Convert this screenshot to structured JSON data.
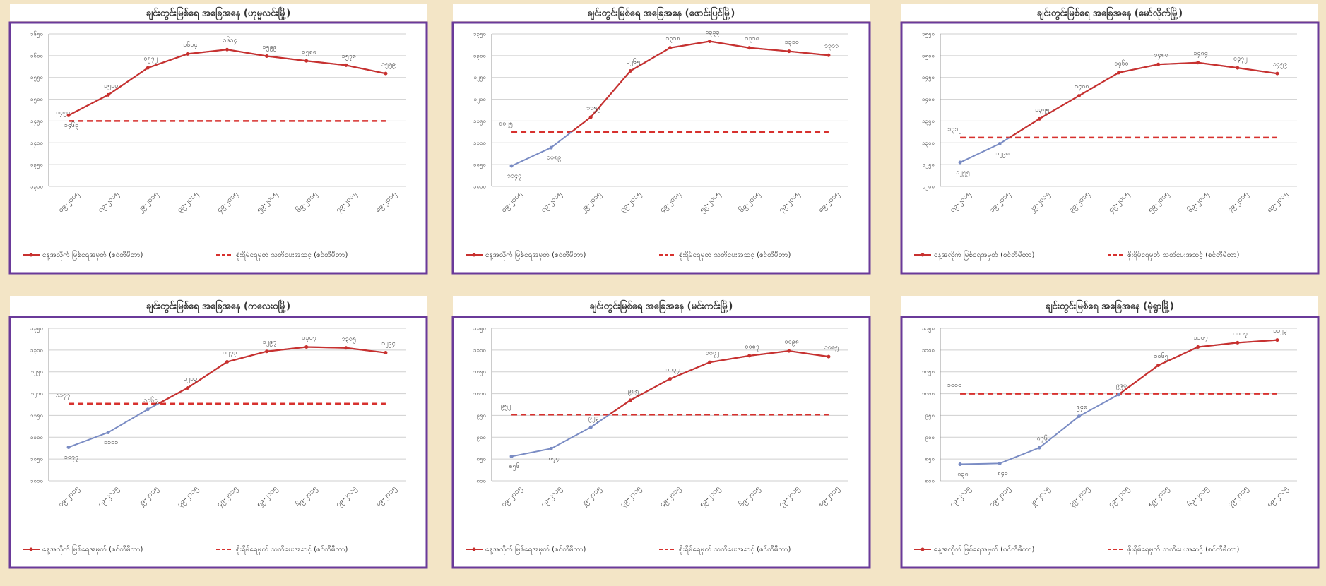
{
  "chart_data": [
    {
      "type": "line",
      "title": "ချင်းတွင်းမြစ်ရေ အခြေအနေ (ဟုမ္မလင်းမြို့)",
      "categories": [
        "၀၉-၂၀၁၅",
        "၁၉-၂၀၁၅",
        "၂၉-၂၀၁၅",
        "၃၉-၂၀၁၅",
        "၄၉-၂၀၁၅",
        "၅၉-၂၀၁၅",
        "၆၉-၂၀၁၅",
        "၇၉-၂၀၁၅",
        "၈၉-၂၀၁၅"
      ],
      "ylim": [
        1300,
        1650
      ],
      "yticks": [
        {
          "value": 1300,
          "label": "၁၃၀၀"
        },
        {
          "value": 1350,
          "label": "၁၃၅၀"
        },
        {
          "value": 1400,
          "label": "၁၄၀၀"
        },
        {
          "value": 1450,
          "label": "၁၄၅၀"
        },
        {
          "value": 1500,
          "label": "၁၅၀၀"
        },
        {
          "value": 1550,
          "label": "၁၅၅၀"
        },
        {
          "value": 1600,
          "label": "၁၆၀၀"
        },
        {
          "value": 1650,
          "label": "၁၆၅၀"
        }
      ],
      "series": [
        {
          "name": "နေ့အလိုက် မြစ်ရေအမှတ် (စင်တီမီတာ)",
          "color": "#c8312f",
          "color_below_danger": "#7a8cc4",
          "values": [
            1463,
            1510,
            1572,
            1604,
            1614,
            1599,
            1588,
            1578,
            1559
          ],
          "value_labels": [
            "၁၄၆၃",
            "၁၅၁၀",
            "၁၅၇၂",
            "၁၆၀၄",
            "၁၆၁၄",
            "၁၅၉၉",
            "၁၅၈၈",
            "၁၅၇၈",
            "၁၅၅၉"
          ]
        }
      ],
      "danger": {
        "name": "စိုးရိမ်ရေမှတ် သတိပေးအဆင့် (စင်တီမီတာ)",
        "color": "#d7312e",
        "value": 1450,
        "value_label": "၁၄၅၀"
      },
      "grid": true
    },
    {
      "type": "line",
      "title": "ချင်းတွင်းမြစ်ရေ အခြေအနေ (ဖောင်းပြင်မြို့)",
      "categories": [
        "၀၉-၂၀၁၅",
        "၁၉-၂၀၁၅",
        "၂၉-၂၀၁၅",
        "၃၉-၂၀၁၅",
        "၄၉-၂၀၁၅",
        "၅၉-၂၀၁၅",
        "၆၉-၂၀၁၅",
        "၇၉-၂၀၁၅",
        "၈၉-၂၀၁၅"
      ],
      "ylim": [
        1000,
        1350
      ],
      "yticks": [
        {
          "value": 1000,
          "label": "၁၀၀၀"
        },
        {
          "value": 1050,
          "label": "၁၀၅၀"
        },
        {
          "value": 1100,
          "label": "၁၁၀၀"
        },
        {
          "value": 1150,
          "label": "၁၁၅၀"
        },
        {
          "value": 1200,
          "label": "၁၂၀၀"
        },
        {
          "value": 1250,
          "label": "၁၂၅၀"
        },
        {
          "value": 1300,
          "label": "၁၃၀၀"
        },
        {
          "value": 1350,
          "label": "၁၃၅၀"
        }
      ],
      "series": [
        {
          "name": "နေ့အလိုက် မြစ်ရေအမှတ် (စင်တီမီတာ)",
          "color": "#c8312f",
          "color_below_danger": "#7a8cc4",
          "values": [
            1047,
            1089,
            1159,
            1265,
            1318,
            1333,
            1318,
            1310,
            1301
          ],
          "value_labels": [
            "၁၀၄၇",
            "၁၀၈၉",
            "၁၁၅၉",
            "၁၂၆၅",
            "၁၃၁၈",
            "၁၃၃၃",
            "၁၃၁၈",
            "၁၃၁၀",
            "၁၃၀၁"
          ]
        }
      ],
      "danger": {
        "name": "စိုးရိမ်ရေမှတ် သတိပေးအဆင့် (စင်တီမီတာ)",
        "color": "#d7312e",
        "value": 1125,
        "value_label": "၁၁၂၅"
      },
      "grid": true
    },
    {
      "type": "line",
      "title": "ချင်းတွင်းမြစ်ရေ အခြေအနေ (မော်လိုက်မြို့)",
      "categories": [
        "၀၉-၂၀၁၅",
        "၁၉-၂၀၁၅",
        "၂၉-၂၀၁၅",
        "၃၉-၂၀၁၅",
        "၄၉-၂၀၁၅",
        "၅၉-၂၀၁၅",
        "၆၉-၂၀၁၅",
        "၇၉-၂၀၁၅",
        "၈၉-၂၀၁၅"
      ],
      "ylim": [
        1200,
        1550
      ],
      "yticks": [
        {
          "value": 1200,
          "label": "၁၂၀၀"
        },
        {
          "value": 1250,
          "label": "၁၂၅၀"
        },
        {
          "value": 1300,
          "label": "၁၃၀၀"
        },
        {
          "value": 1350,
          "label": "၁၃၅၀"
        },
        {
          "value": 1400,
          "label": "၁၄၀၀"
        },
        {
          "value": 1450,
          "label": "၁၄၅၀"
        },
        {
          "value": 1500,
          "label": "၁၅၀၀"
        },
        {
          "value": 1550,
          "label": "၁၅၅၀"
        }
      ],
      "series": [
        {
          "name": "နေ့အလိုက် မြစ်ရေအမှတ် (စင်တီမီတာ)",
          "color": "#c8312f",
          "color_below_danger": "#7a8cc4",
          "values": [
            1255,
            1298,
            1355,
            1408,
            1461,
            1480,
            1484,
            1472,
            1459
          ],
          "value_labels": [
            "၁၂၅၅",
            "၁၂၉၈",
            "၁၃၅၅",
            "၁၄၀၈",
            "၁၄၆၁",
            "၁၄၈၀",
            "၁၄၈၄",
            "၁၄၇၂",
            "၁၄၅၉"
          ]
        }
      ],
      "danger": {
        "name": "စိုးရိမ်ရေမှတ် သတိပေးအဆင့် (စင်တီမီတာ)",
        "color": "#d7312e",
        "value": 1312,
        "value_label": "၁၃၁၂"
      },
      "grid": true
    },
    {
      "type": "line",
      "title": "ချင်းတွင်းမြစ်ရေ အခြေအနေ (ကလေးဝမြို့)",
      "categories": [
        "၀၉-၂၀၁၅",
        "၁၉-၂၀၁၅",
        "၂၉-၂၀၁၅",
        "၃၉-၂၀၁၅",
        "၄၉-၂၀၁၅",
        "၅၉-၂၀၁၅",
        "၆၉-၂၀၁၅",
        "၇၉-၂၀၁၅",
        "၈၉-၂၀၁၅"
      ],
      "ylim": [
        1000,
        1350
      ],
      "yticks": [
        {
          "value": 1000,
          "label": "၁၀၀၀"
        },
        {
          "value": 1050,
          "label": "၁၀၅၀"
        },
        {
          "value": 1100,
          "label": "၁၁၀၀"
        },
        {
          "value": 1150,
          "label": "၁၁၅၀"
        },
        {
          "value": 1200,
          "label": "၁၂၀၀"
        },
        {
          "value": 1250,
          "label": "၁၂၅၀"
        },
        {
          "value": 1300,
          "label": "၁၃၀၀"
        },
        {
          "value": 1350,
          "label": "၁၃၅၀"
        }
      ],
      "series": [
        {
          "name": "နေ့အလိုက် မြစ်ရေအမှတ် (စင်တီမီတာ)",
          "color": "#c8312f",
          "color_below_danger": "#7a8cc4",
          "values": [
            1077,
            1111,
            1164,
            1213,
            1273,
            1297,
            1307,
            1305,
            1294
          ],
          "value_labels": [
            "၁၀၇၇",
            "၁၁၁၁",
            "၁၁၆၄",
            "၁၂၁၃",
            "၁၂၇၃",
            "၁၂၉၇",
            "၁၃၀၇",
            "၁၃၀၅",
            "၁၂၉၄"
          ]
        }
      ],
      "danger": {
        "name": "စိုးရိမ်ရေမှတ် သတိပေးအဆင့် (စင်တီမီတာ)",
        "color": "#d7312e",
        "value": 1177,
        "value_label": "၁၁၇၇"
      },
      "grid": true
    },
    {
      "type": "line",
      "title": "ချင်းတွင်းမြစ်ရေ အခြေအနေ (မင်းကင်းမြို့)",
      "categories": [
        "၀၉-၂၀၁၅",
        "၁၉-၂၀၁၅",
        "၂၉-၂၀၁၅",
        "၃၉-၂၀၁၅",
        "၄၉-၂၀၁၅",
        "၅၉-၂၀၁၅",
        "၆၉-၂၀၁၅",
        "၇၉-၂၀၁၅",
        "၈၉-၂၀၁၅"
      ],
      "ylim": [
        800,
        1150
      ],
      "yticks": [
        {
          "value": 800,
          "label": "၈၀၀"
        },
        {
          "value": 850,
          "label": "၈၅၀"
        },
        {
          "value": 900,
          "label": "၉၀၀"
        },
        {
          "value": 950,
          "label": "၉၅၀"
        },
        {
          "value": 1000,
          "label": "၁၀၀၀"
        },
        {
          "value": 1050,
          "label": "၁၀၅၀"
        },
        {
          "value": 1100,
          "label": "၁၁၀၀"
        },
        {
          "value": 1150,
          "label": "၁၁၅၀"
        }
      ],
      "series": [
        {
          "name": "နေ့အလိုက် မြစ်ရေအမှတ် (စင်တီမီတာ)",
          "color": "#c8312f",
          "color_below_danger": "#7a8cc4",
          "values": [
            856,
            874,
            923,
            985,
            1034,
            1072,
            1087,
            1098,
            1085
          ],
          "value_labels": [
            "၈၅၆",
            "၈၇၄",
            "၉၂၃",
            "၉၈၅",
            "၁၀၃၄",
            "၁၀၇၂",
            "၁၀၈၇",
            "၁၀၉၈",
            "၁၀၈၅"
          ]
        }
      ],
      "danger": {
        "name": "စိုးရိမ်ရေမှတ် သတိပေးအဆင့် (စင်တီမီတာ)",
        "color": "#d7312e",
        "value": 952,
        "value_label": "၉၅၂"
      },
      "grid": true
    },
    {
      "type": "line",
      "title": "ချင်းတွင်းမြစ်ရေ အခြေအနေ (မုံရွာမြို့)",
      "categories": [
        "၀၉-၂၀၁၅",
        "၁၉-၂၀၁၅",
        "၂၉-၂၀၁၅",
        "၃၉-၂၀၁၅",
        "၄၉-၂၀၁၅",
        "၅၉-၂၀၁၅",
        "၆၉-၂၀၁၅",
        "၇၉-၂၀၁၅",
        "၈၉-၂၀၁၅"
      ],
      "ylim": [
        800,
        1150
      ],
      "yticks": [
        {
          "value": 800,
          "label": "၈၀၀"
        },
        {
          "value": 850,
          "label": "၈၅၀"
        },
        {
          "value": 900,
          "label": "၉၀၀"
        },
        {
          "value": 950,
          "label": "၉၅၀"
        },
        {
          "value": 1000,
          "label": "၁၀၀၀"
        },
        {
          "value": 1050,
          "label": "၁၀၅၀"
        },
        {
          "value": 1100,
          "label": "၁၁၀၀"
        },
        {
          "value": 1150,
          "label": "၁၁၅၀"
        }
      ],
      "series": [
        {
          "name": "နေ့အလိုက် မြစ်ရေအမှတ် (စင်တီမီတာ)",
          "color": "#c8312f",
          "color_below_danger": "#7a8cc4",
          "values": [
            838,
            840,
            876,
            948,
            998,
            1065,
            1107,
            1117,
            1123
          ],
          "value_labels": [
            "၈၃၈",
            "၈၄၀",
            "၈၇၆",
            "၉၄၈",
            "၉၉၈",
            "၁၀၆၅",
            "၁၁၀၇",
            "၁၁၁၇",
            "၁၁၂၃"
          ]
        }
      ],
      "danger": {
        "name": "စိုးရိမ်ရေမှတ် သတိပေးအဆင့် (စင်တီမီတာ)",
        "color": "#d7312e",
        "value": 1000,
        "value_label": "၁၀၀၀"
      },
      "grid": true
    }
  ]
}
